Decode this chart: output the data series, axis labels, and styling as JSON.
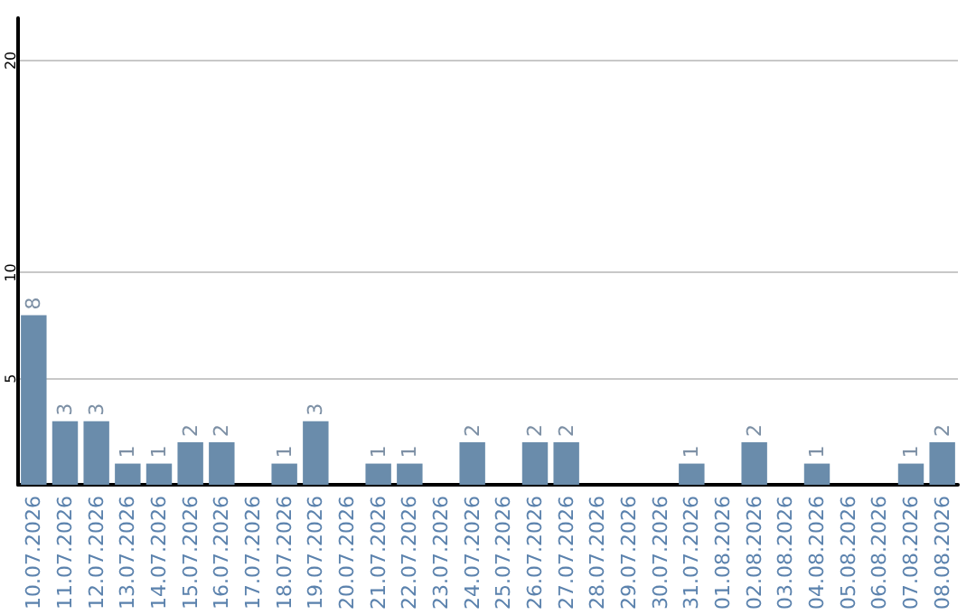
{
  "chart_data": {
    "type": "bar",
    "categories": [
      "10.07.2026",
      "11.07.2026",
      "12.07.2026",
      "13.07.2026",
      "14.07.2026",
      "15.07.2026",
      "16.07.2026",
      "17.07.2026",
      "18.07.2026",
      "19.07.2026",
      "20.07.2026",
      "21.07.2026",
      "22.07.2026",
      "23.07.2026",
      "24.07.2026",
      "25.07.2026",
      "26.07.2026",
      "27.07.2026",
      "28.07.2026",
      "29.07.2026",
      "30.07.2026",
      "31.07.2026",
      "01.08.2026",
      "02.08.2026",
      "03.08.2026",
      "04.08.2026",
      "05.08.2026",
      "06.08.2026",
      "07.08.2026",
      "08.08.2026"
    ],
    "values": [
      8,
      3,
      3,
      1,
      1,
      2,
      2,
      0,
      1,
      3,
      0,
      1,
      1,
      0,
      2,
      0,
      2,
      2,
      0,
      0,
      0,
      1,
      0,
      2,
      0,
      1,
      0,
      0,
      1,
      2
    ],
    "value_labels": [
      "8",
      "3",
      "3",
      "1",
      "1",
      "2",
      "2",
      null,
      "1",
      "3",
      null,
      "1",
      "1",
      null,
      "2",
      null,
      "2",
      "2",
      null,
      null,
      null,
      "1",
      null,
      "2",
      null,
      "1",
      null,
      null,
      "1",
      "2"
    ],
    "color": "#6a8cab",
    "ylim": [
      0,
      22
    ],
    "yticks": [
      5,
      10,
      20
    ],
    "grid": "y"
  }
}
